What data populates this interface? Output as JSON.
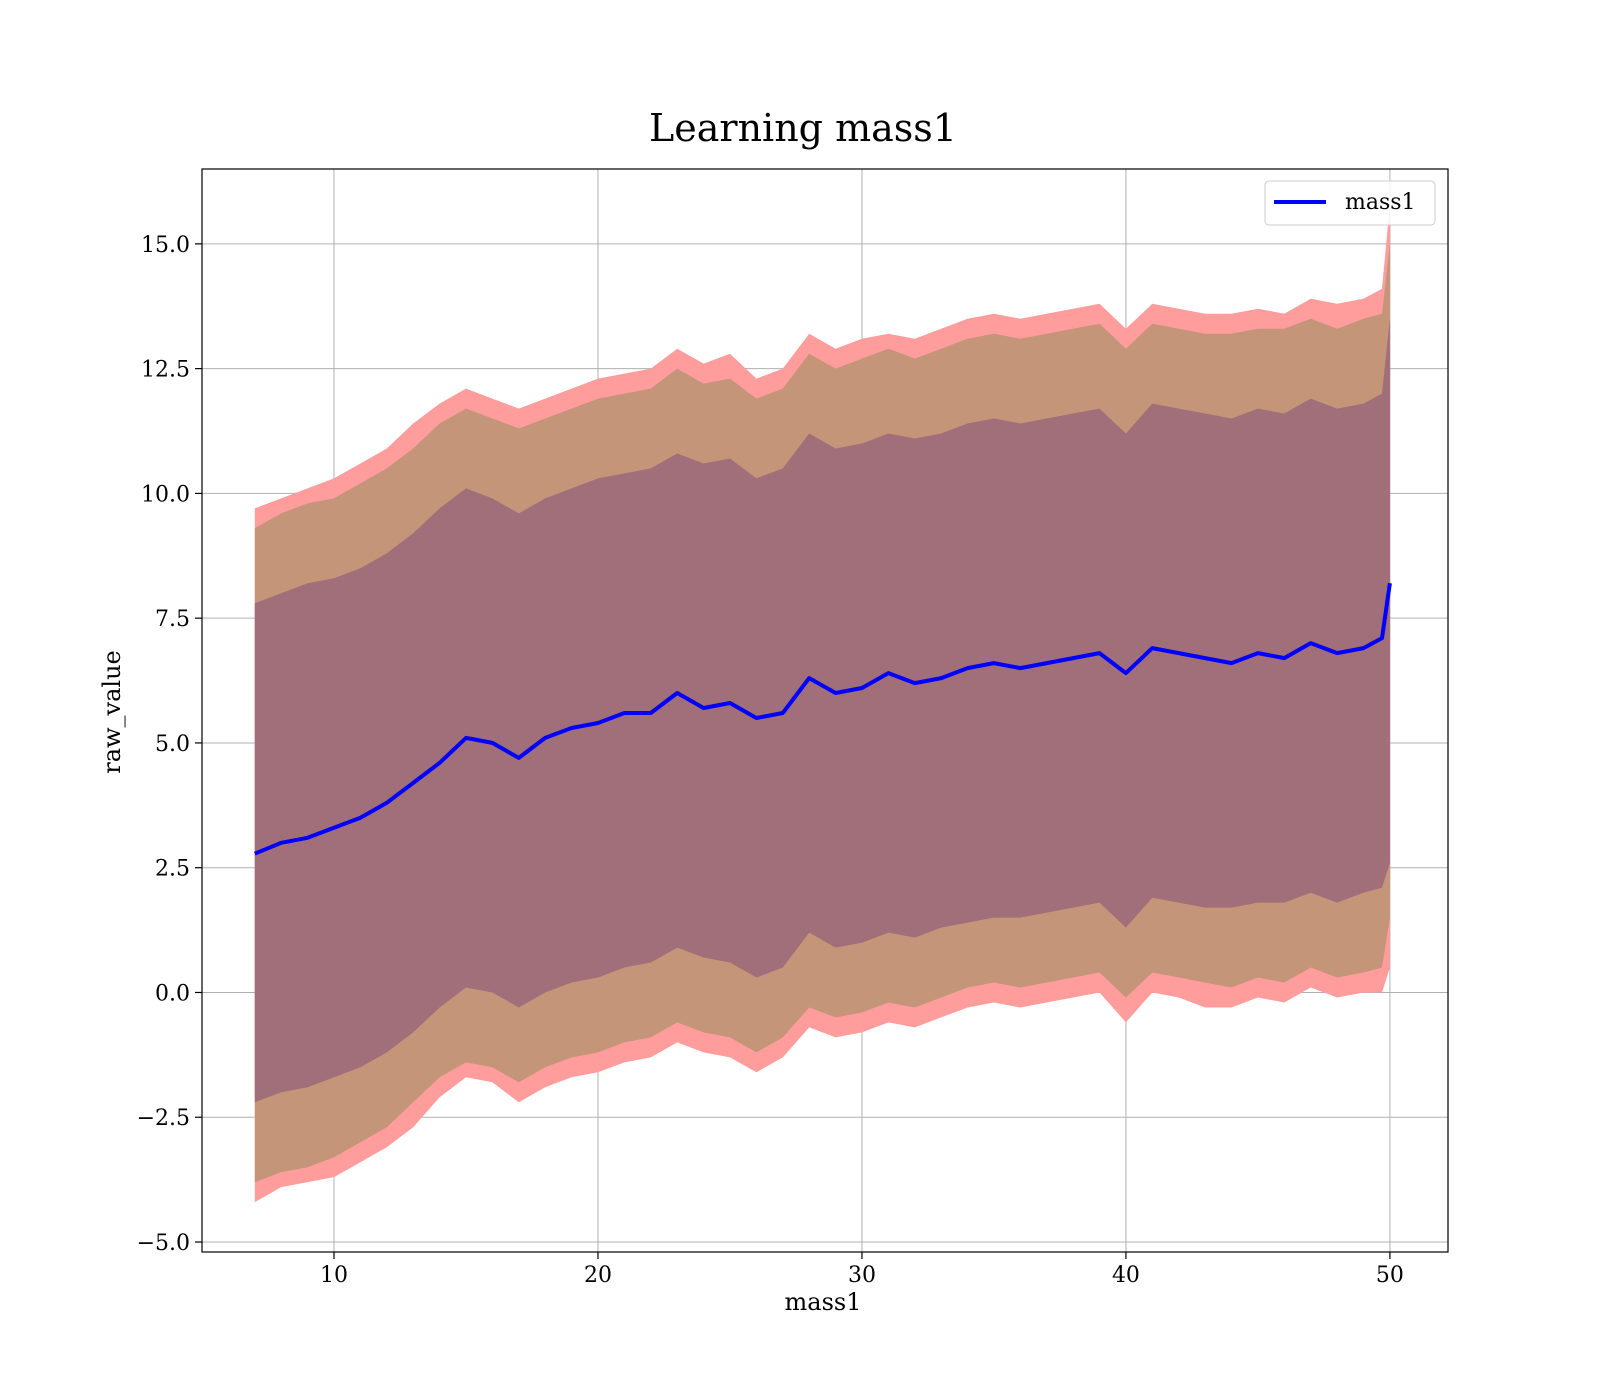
{
  "chart_data": {
    "type": "line",
    "title": "Learning mass1",
    "xlabel": "mass1",
    "ylabel": "raw_value",
    "xlim": [
      5,
      52.2
    ],
    "ylim": [
      -5.2,
      16.5
    ],
    "xticks": [
      10,
      20,
      30,
      40,
      50
    ],
    "xtick_labels": [
      "10",
      "20",
      "30",
      "40",
      "50"
    ],
    "yticks": [
      -5.0,
      -2.5,
      0.0,
      2.5,
      5.0,
      7.5,
      10.0,
      12.5,
      15.0
    ],
    "ytick_labels": [
      "−5.0",
      "−2.5",
      "0.0",
      "2.5",
      "5.0",
      "7.5",
      "10.0",
      "12.5",
      "15.0"
    ],
    "grid": true,
    "legend": {
      "position": "top-right",
      "entries": [
        {
          "label": "mass1",
          "color": "#0000ff"
        }
      ]
    },
    "colors": {
      "line": "#0000ff",
      "band_3sigma": "#ff9c9c",
      "band_2sigma": "#c49579",
      "band_1sigma": "#a06f79"
    },
    "x": [
      7,
      8,
      9,
      10,
      11,
      12,
      13,
      14,
      15,
      16,
      17,
      18,
      19,
      20,
      21,
      22,
      23,
      24,
      25,
      26,
      27,
      28,
      29,
      30,
      31,
      32,
      33,
      34,
      35,
      36,
      37,
      38,
      39,
      40,
      41,
      42,
      43,
      44,
      45,
      46,
      47,
      48,
      49,
      49.7,
      50
    ],
    "series": [
      {
        "name": "mass1",
        "values": [
          2.78,
          3.0,
          3.1,
          3.3,
          3.5,
          3.8,
          4.2,
          4.6,
          5.1,
          5.0,
          4.7,
          5.1,
          5.3,
          5.4,
          5.6,
          5.6,
          6.0,
          5.7,
          5.8,
          5.5,
          5.6,
          6.3,
          6.0,
          6.1,
          6.4,
          6.2,
          6.3,
          6.5,
          6.6,
          6.5,
          6.6,
          6.7,
          6.8,
          6.4,
          6.9,
          6.8,
          6.7,
          6.6,
          6.8,
          6.7,
          7.0,
          6.8,
          6.9,
          7.1,
          8.2
        ]
      }
    ],
    "bands": [
      {
        "level": "3sigma",
        "upper": [
          9.7,
          9.9,
          10.1,
          10.3,
          10.6,
          10.9,
          11.4,
          11.8,
          12.1,
          11.9,
          11.7,
          11.9,
          12.1,
          12.3,
          12.4,
          12.5,
          12.9,
          12.6,
          12.8,
          12.3,
          12.5,
          13.2,
          12.9,
          13.1,
          13.2,
          13.1,
          13.3,
          13.5,
          13.6,
          13.5,
          13.6,
          13.7,
          13.8,
          13.3,
          13.8,
          13.7,
          13.6,
          13.6,
          13.7,
          13.6,
          13.9,
          13.8,
          13.9,
          14.1,
          15.8
        ],
        "lower": [
          -4.2,
          -3.9,
          -3.8,
          -3.7,
          -3.4,
          -3.1,
          -2.7,
          -2.1,
          -1.7,
          -1.8,
          -2.2,
          -1.9,
          -1.7,
          -1.6,
          -1.4,
          -1.3,
          -1.0,
          -1.2,
          -1.3,
          -1.6,
          -1.3,
          -0.7,
          -0.9,
          -0.8,
          -0.6,
          -0.7,
          -0.5,
          -0.3,
          -0.2,
          -0.3,
          -0.2,
          -0.1,
          0.0,
          -0.6,
          0.0,
          -0.1,
          -0.3,
          -0.3,
          -0.1,
          -0.2,
          0.1,
          -0.1,
          0.0,
          0.0,
          0.5
        ]
      },
      {
        "level": "2sigma",
        "upper": [
          9.3,
          9.6,
          9.8,
          9.9,
          10.2,
          10.5,
          10.9,
          11.4,
          11.7,
          11.5,
          11.3,
          11.5,
          11.7,
          11.9,
          12.0,
          12.1,
          12.5,
          12.2,
          12.3,
          11.9,
          12.1,
          12.8,
          12.5,
          12.7,
          12.9,
          12.7,
          12.9,
          13.1,
          13.2,
          13.1,
          13.2,
          13.3,
          13.4,
          12.9,
          13.4,
          13.3,
          13.2,
          13.2,
          13.3,
          13.3,
          13.5,
          13.3,
          13.5,
          13.6,
          15.0
        ],
        "lower": [
          -3.8,
          -3.6,
          -3.5,
          -3.3,
          -3.0,
          -2.7,
          -2.2,
          -1.7,
          -1.4,
          -1.5,
          -1.8,
          -1.5,
          -1.3,
          -1.2,
          -1.0,
          -0.9,
          -0.6,
          -0.8,
          -0.9,
          -1.2,
          -0.9,
          -0.3,
          -0.5,
          -0.4,
          -0.2,
          -0.3,
          -0.1,
          0.1,
          0.2,
          0.1,
          0.2,
          0.3,
          0.4,
          -0.1,
          0.4,
          0.3,
          0.2,
          0.1,
          0.3,
          0.2,
          0.5,
          0.3,
          0.4,
          0.5,
          1.5
        ]
      },
      {
        "level": "1sigma",
        "upper": [
          7.8,
          8.0,
          8.2,
          8.3,
          8.5,
          8.8,
          9.2,
          9.7,
          10.1,
          9.9,
          9.6,
          9.9,
          10.1,
          10.3,
          10.4,
          10.5,
          10.8,
          10.6,
          10.7,
          10.3,
          10.5,
          11.2,
          10.9,
          11.0,
          11.2,
          11.1,
          11.2,
          11.4,
          11.5,
          11.4,
          11.5,
          11.6,
          11.7,
          11.2,
          11.8,
          11.7,
          11.6,
          11.5,
          11.7,
          11.6,
          11.9,
          11.7,
          11.8,
          12.0,
          13.5
        ],
        "lower": [
          -2.2,
          -2.0,
          -1.9,
          -1.7,
          -1.5,
          -1.2,
          -0.8,
          -0.3,
          0.1,
          0.0,
          -0.3,
          0.0,
          0.2,
          0.3,
          0.5,
          0.6,
          0.9,
          0.7,
          0.6,
          0.3,
          0.5,
          1.2,
          0.9,
          1.0,
          1.2,
          1.1,
          1.3,
          1.4,
          1.5,
          1.5,
          1.6,
          1.7,
          1.8,
          1.3,
          1.9,
          1.8,
          1.7,
          1.7,
          1.8,
          1.8,
          2.0,
          1.8,
          2.0,
          2.1,
          2.6
        ]
      }
    ]
  }
}
